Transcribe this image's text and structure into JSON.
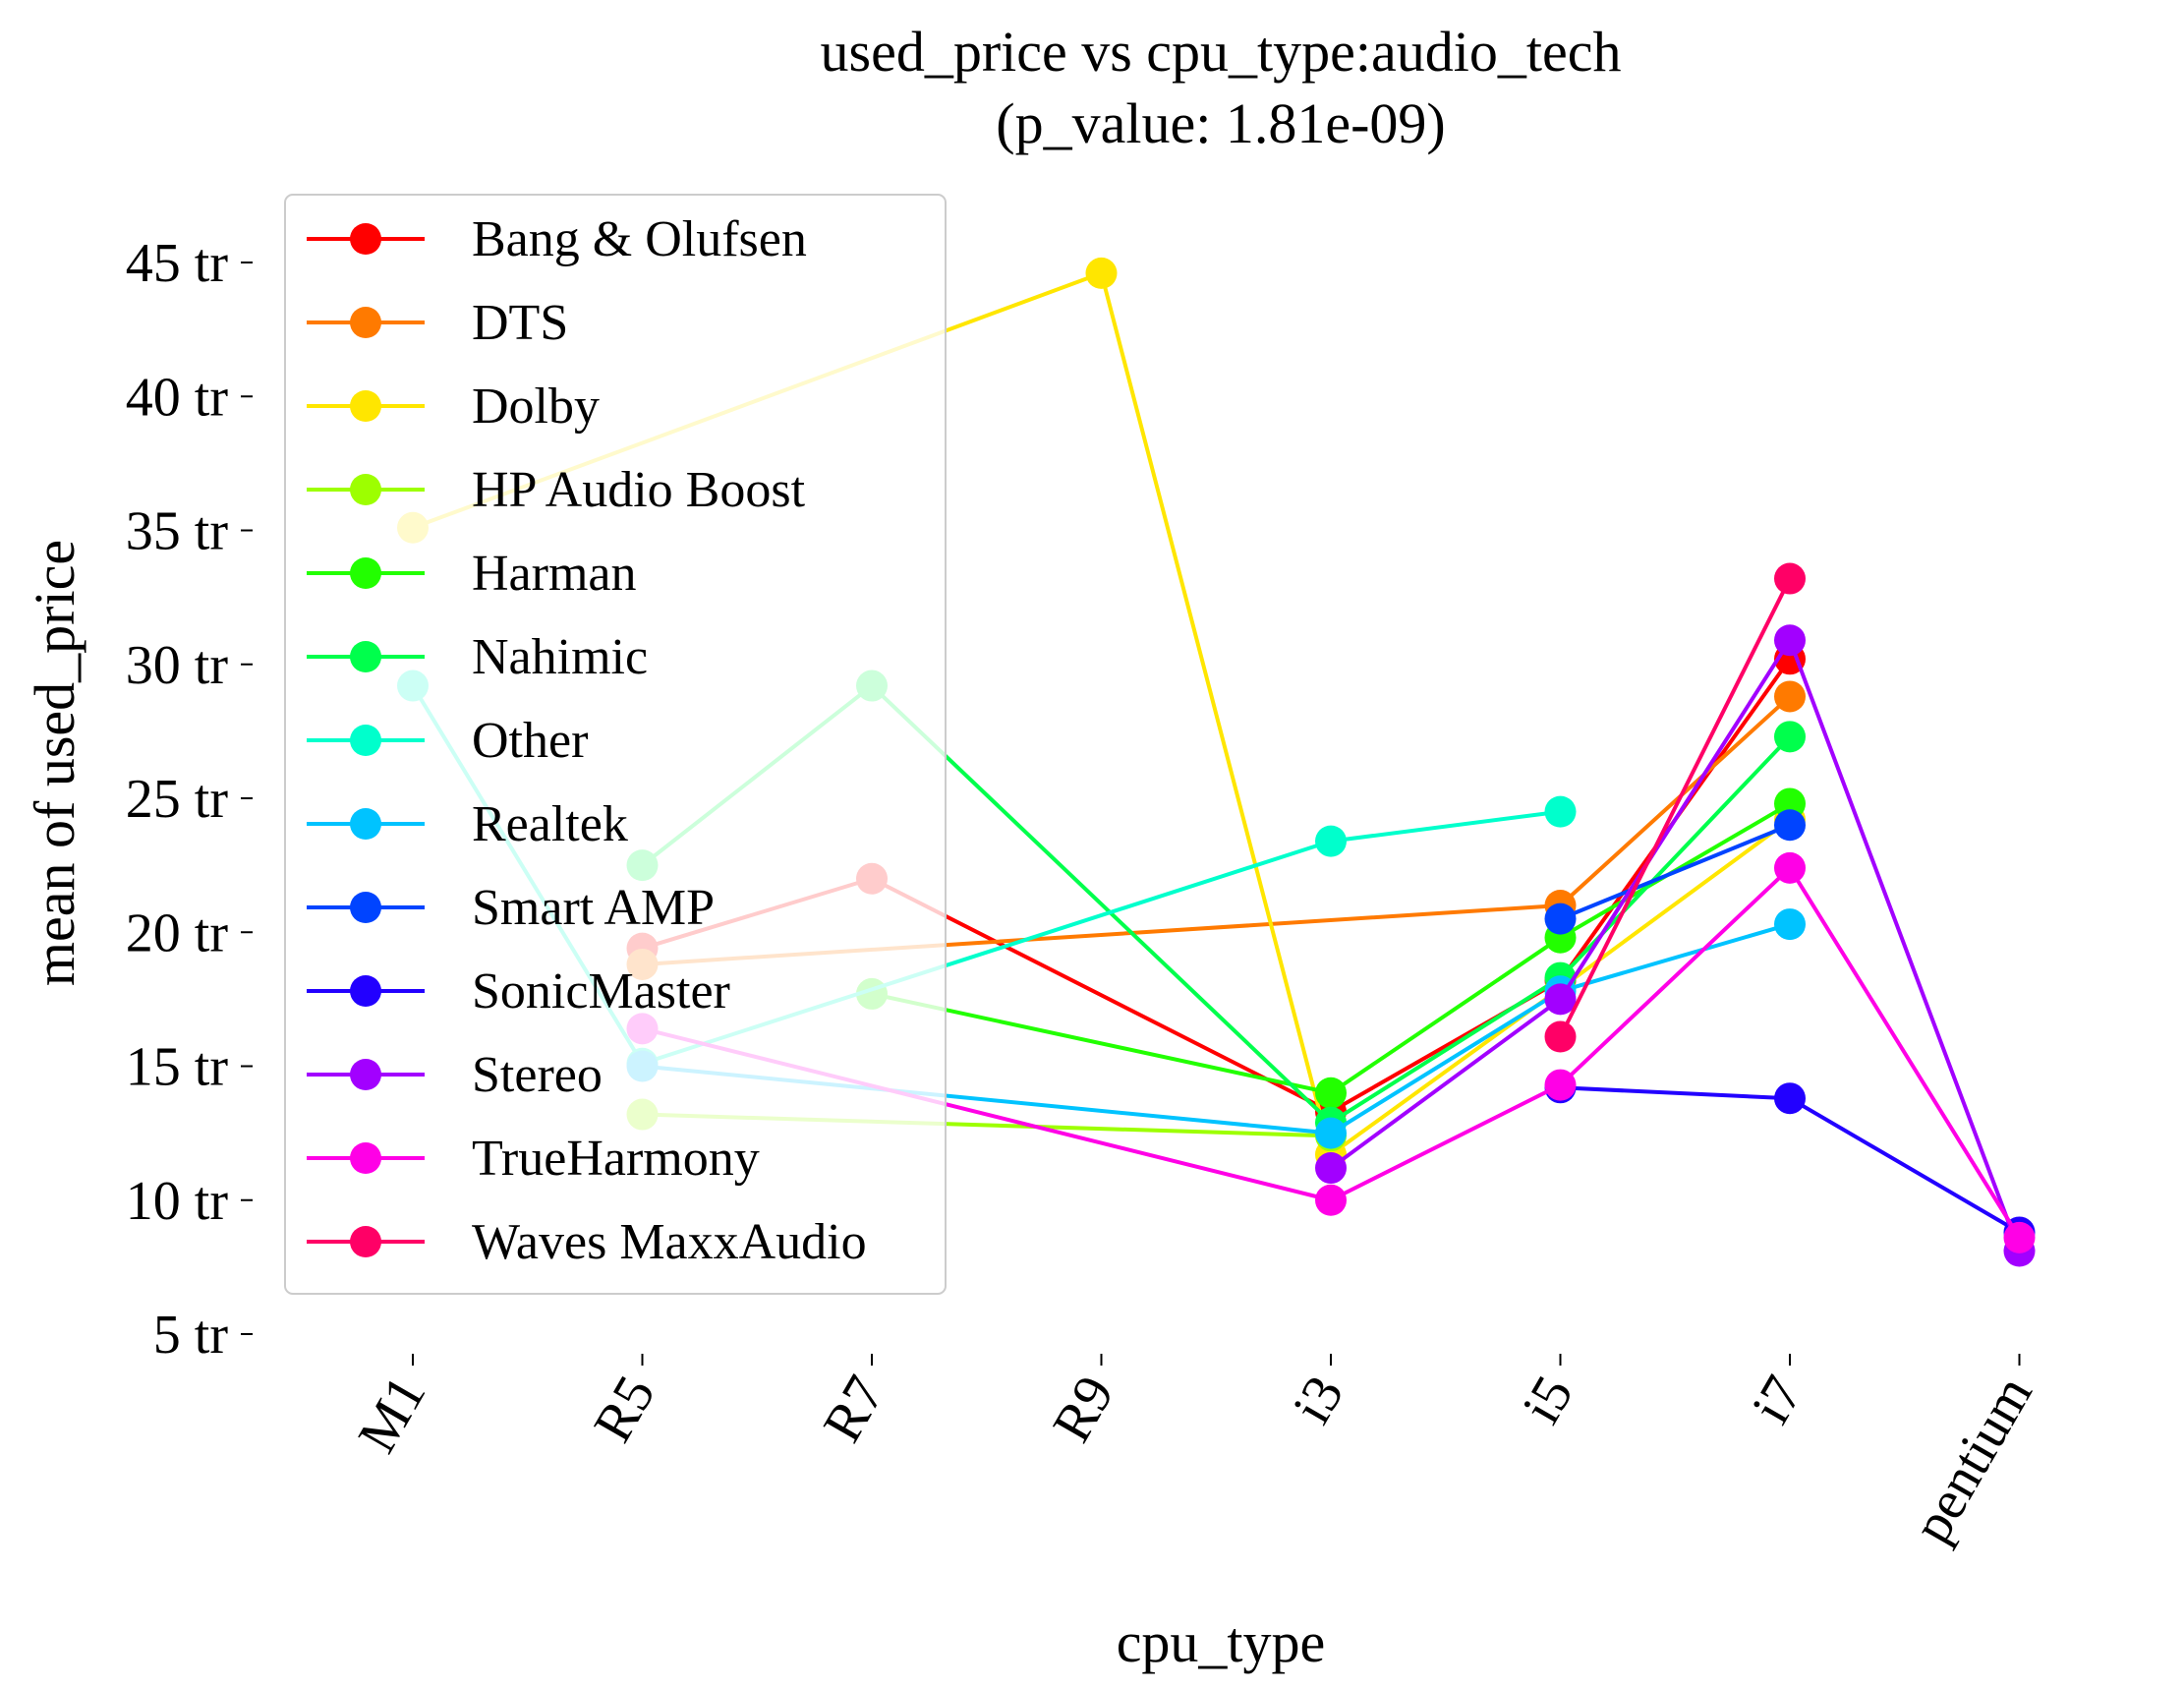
{
  "chart_data": {
    "type": "line",
    "title": "used_price vs cpu_type:audio_tech",
    "subtitle": "(p_value: 1.81e-09)",
    "xlabel": "cpu_type",
    "ylabel": "mean of used_price",
    "categories": [
      "M1",
      "R5",
      "R7",
      "R9",
      "i3",
      "i5",
      "i7",
      "pentium"
    ],
    "ylim": [
      5,
      45
    ],
    "yticks": [
      5,
      10,
      15,
      20,
      25,
      30,
      35,
      40,
      45
    ],
    "ytick_suffix": " tr",
    "grid": false,
    "legend_position": "upper-left",
    "series": [
      {
        "name": "Bang & Olufsen",
        "color": "#ff0000",
        "values": [
          null,
          19.4,
          22.0,
          null,
          13.3,
          18.2,
          30.2,
          null
        ]
      },
      {
        "name": "DTS",
        "color": "#ff7a00",
        "values": [
          null,
          18.8,
          null,
          null,
          null,
          21.0,
          28.8,
          null
        ]
      },
      {
        "name": "Dolby",
        "color": "#ffe600",
        "values": [
          35.1,
          null,
          null,
          44.6,
          11.7,
          17.9,
          24.2,
          null
        ]
      },
      {
        "name": "HP Audio Boost",
        "color": "#9dff00",
        "values": [
          null,
          13.2,
          null,
          null,
          12.4,
          null,
          null,
          null
        ]
      },
      {
        "name": "Harman",
        "color": "#22ff00",
        "values": [
          null,
          null,
          17.7,
          null,
          14.0,
          19.8,
          24.8,
          null
        ]
      },
      {
        "name": "Nahimic",
        "color": "#00ff4c",
        "values": [
          null,
          22.5,
          29.2,
          null,
          12.9,
          18.3,
          27.3,
          null
        ]
      },
      {
        "name": "Other",
        "color": "#00ffcc",
        "values": [
          29.2,
          15.1,
          null,
          null,
          23.4,
          24.5,
          null,
          null
        ]
      },
      {
        "name": "Realtek",
        "color": "#00c3ff",
        "values": [
          null,
          15.0,
          null,
          null,
          12.5,
          17.8,
          20.3,
          null
        ]
      },
      {
        "name": "Smart AMP",
        "color": "#0044ff",
        "values": [
          null,
          null,
          null,
          null,
          null,
          20.5,
          24.0,
          null
        ]
      },
      {
        "name": "SonicMaster",
        "color": "#2200ff",
        "values": [
          null,
          null,
          null,
          null,
          null,
          14.2,
          13.8,
          8.8
        ]
      },
      {
        "name": "Stereo",
        "color": "#a200ff",
        "values": [
          null,
          null,
          null,
          null,
          11.2,
          17.5,
          30.9,
          8.1
        ]
      },
      {
        "name": "TrueHarmony",
        "color": "#ff00e6",
        "values": [
          null,
          16.4,
          null,
          null,
          10.0,
          14.3,
          22.4,
          8.6
        ]
      },
      {
        "name": "Waves MaxxAudio",
        "color": "#ff0066",
        "values": [
          null,
          null,
          null,
          null,
          null,
          16.1,
          33.2,
          null
        ]
      }
    ]
  }
}
